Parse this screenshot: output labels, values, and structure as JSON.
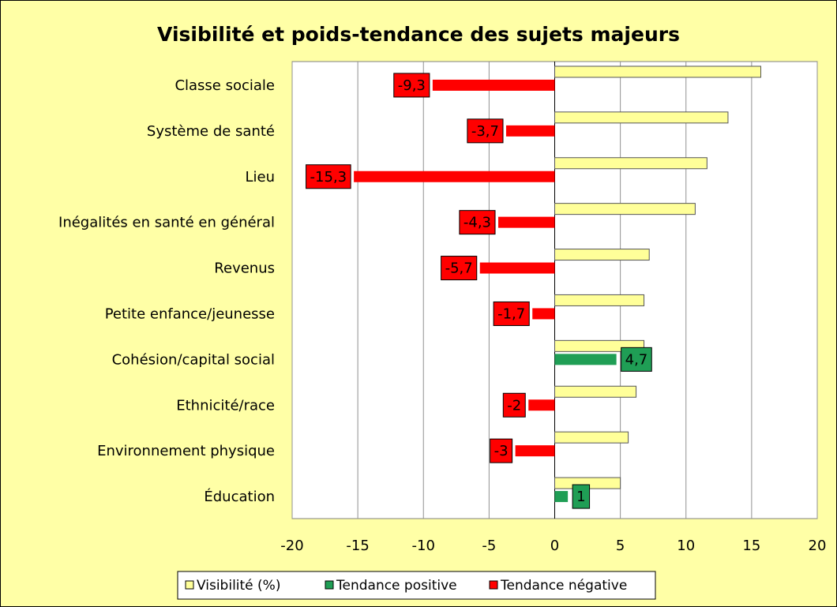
{
  "chart_data": {
    "type": "hbar",
    "title": "Visibilité et poids-tendance des sujets majeurs",
    "categories": [
      "Classe sociale",
      "Système de santé",
      "Lieu",
      "Inégalités en santé en général",
      "Revenus",
      "Petite enfance/jeunesse",
      "Cohésion/capital social",
      "Ethnicité/race",
      "Environnement physique",
      "Éducation"
    ],
    "series": [
      {
        "name": "Visibilité (%)",
        "color": "#ffff99",
        "values": [
          15.7,
          13.2,
          11.6,
          10.7,
          7.2,
          6.8,
          6.8,
          6.2,
          5.6,
          5.0
        ]
      },
      {
        "name": "Tendance positive",
        "color": "#1f9e55",
        "values": [
          null,
          null,
          null,
          null,
          null,
          null,
          4.7,
          null,
          null,
          1
        ],
        "value_labels": [
          null,
          null,
          null,
          null,
          null,
          null,
          "4,7",
          null,
          null,
          "1"
        ]
      },
      {
        "name": "Tendance négative",
        "color": "#ff0000",
        "values": [
          -9.3,
          -3.7,
          -15.3,
          -4.3,
          -5.7,
          -1.7,
          null,
          -2,
          -3,
          null
        ],
        "value_labels": [
          "-9,3",
          "-3,7",
          "-15,3",
          "-4,3",
          "-5,7",
          "-1,7",
          null,
          "-2",
          "-3",
          null
        ]
      }
    ],
    "xlim": [
      -20,
      20
    ],
    "xticks": [
      -20,
      -15,
      -10,
      -5,
      0,
      5,
      10,
      15,
      20
    ],
    "grid": true,
    "legend": "bottom"
  }
}
